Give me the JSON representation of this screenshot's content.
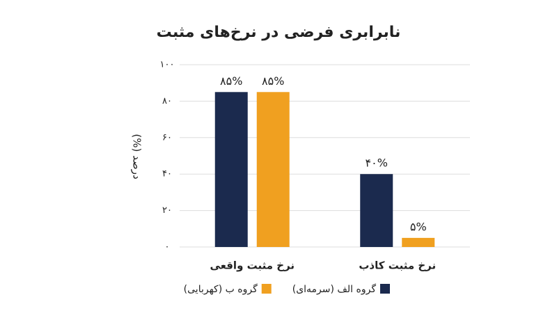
{
  "chart_data": {
    "type": "bar",
    "title": "نابرابری فرضی در نرخ‌های مثبت",
    "y_label": "درصد (%)",
    "categories": [
      "نرخ مثبت واقعی",
      "نرخ مثبت کاذب"
    ],
    "series": [
      {
        "name": "گروه الف (سرمه‌ای)",
        "color": "#1b2a4e",
        "values": [
          85,
          40
        ],
        "value_labels": [
          "۸۵%",
          "۴۰%"
        ]
      },
      {
        "name": "گروه ب (کهربایی)",
        "color": "#f0a020",
        "values": [
          85,
          5
        ],
        "value_labels": [
          "۸۵%",
          "۵%"
        ]
      }
    ],
    "ylim": [
      0,
      100
    ],
    "yticks": [
      {
        "value": 0,
        "label": "۰"
      },
      {
        "value": 20,
        "label": "۲۰"
      },
      {
        "value": 40,
        "label": "۴۰"
      },
      {
        "value": 60,
        "label": "۶۰"
      },
      {
        "value": 80,
        "label": "۸۰"
      },
      {
        "value": 100,
        "label": "۱۰۰"
      }
    ],
    "grid": true
  }
}
